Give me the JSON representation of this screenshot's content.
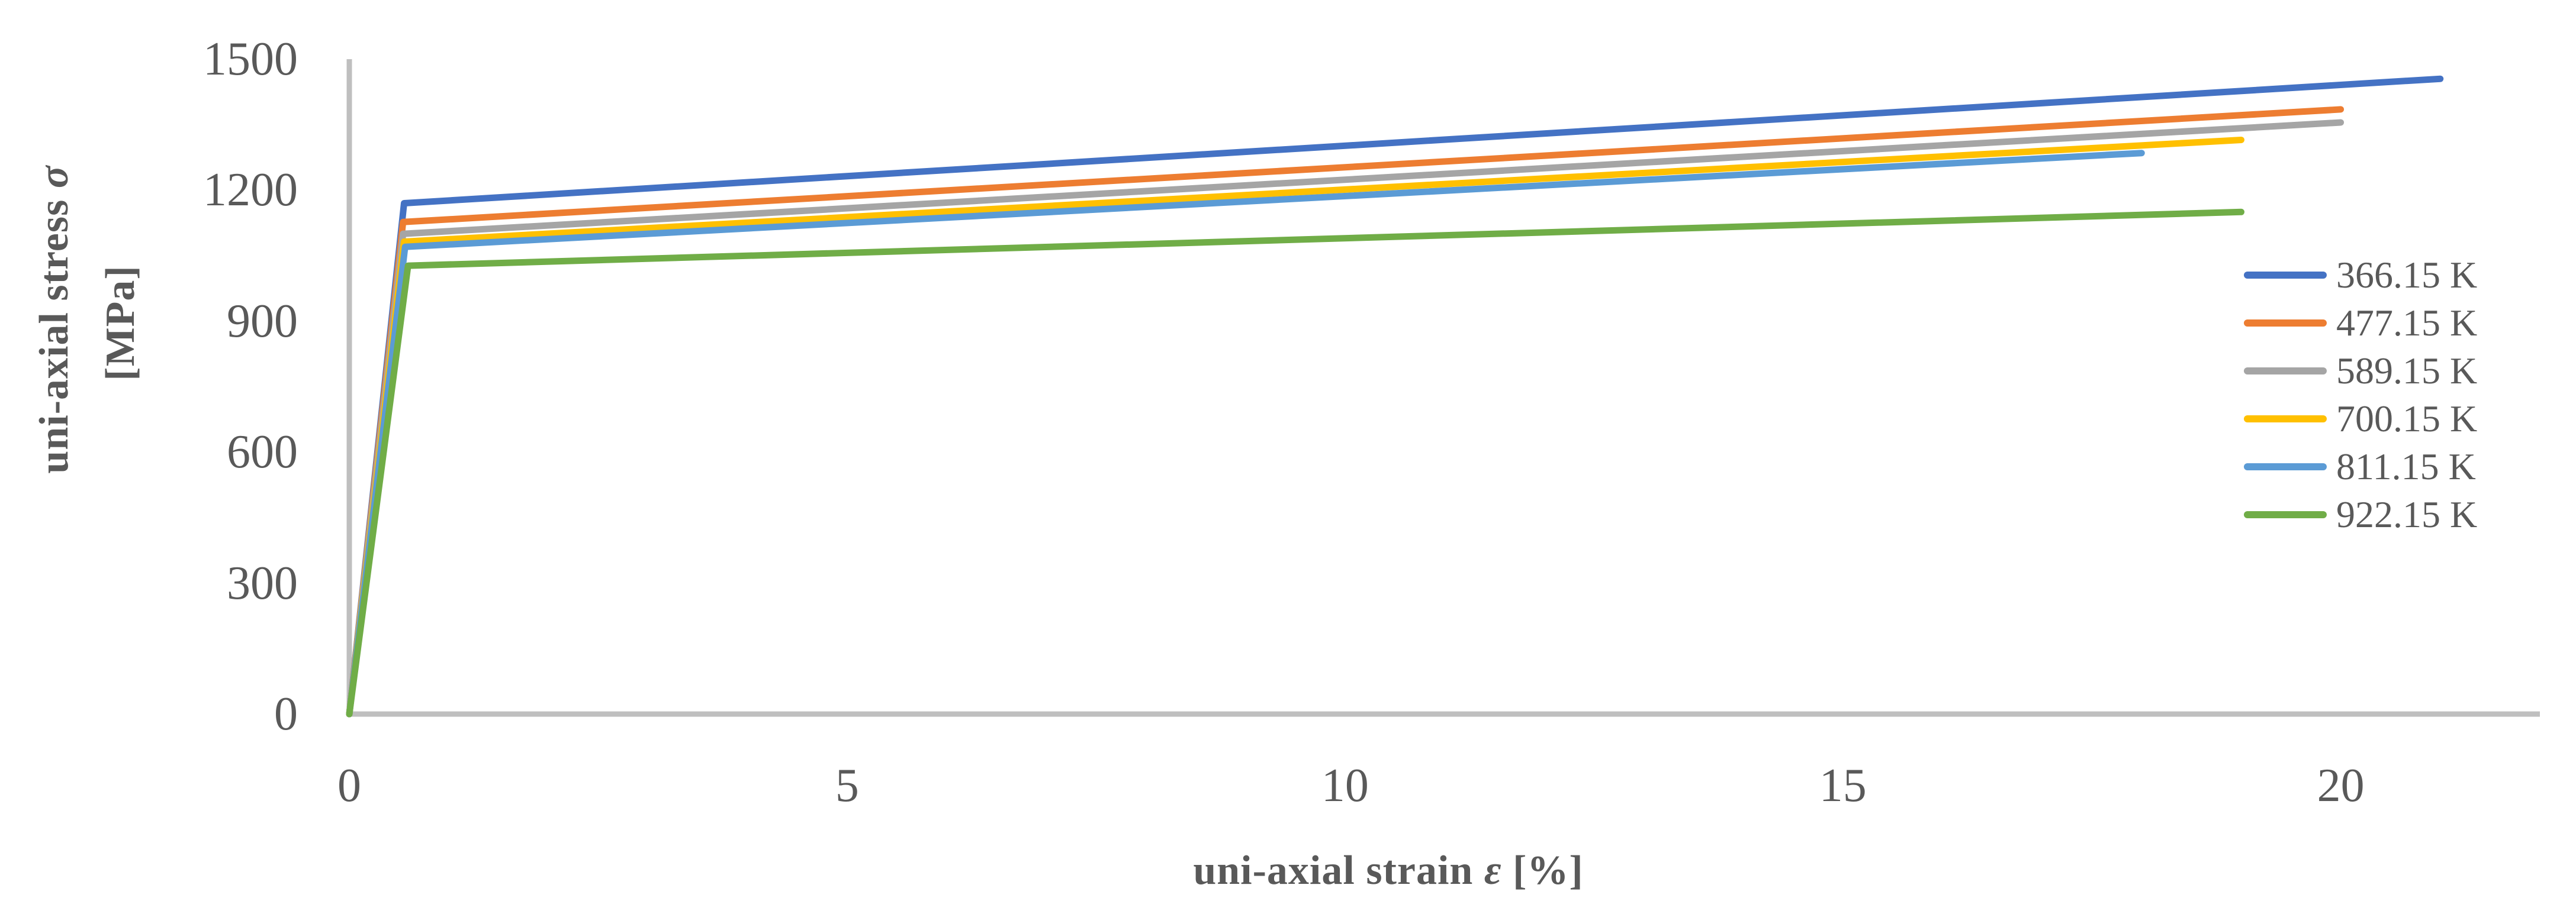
{
  "chart_data": {
    "type": "line",
    "title": "",
    "xlabel": {
      "prefix": "uni-axial strain ",
      "symbol": "ε",
      "suffix": " [%]"
    },
    "ylabel": {
      "line1_prefix": "uni-axial stress ",
      "line1_symbol": "σ",
      "line2": "[MPa]"
    },
    "xlim": [
      0,
      22
    ],
    "ylim": [
      0,
      1500
    ],
    "x_ticks": [
      0,
      5,
      10,
      15,
      20
    ],
    "y_ticks": [
      0,
      300,
      600,
      900,
      1200,
      1500
    ],
    "grid": false,
    "legend_position": "right",
    "x_unit": "%",
    "y_unit": "MPa",
    "series": [
      {
        "name": "366.15 K",
        "color": "#4472C4",
        "points": [
          [
            0,
            0
          ],
          [
            0.55,
            1170
          ],
          [
            21,
            1455
          ]
        ]
      },
      {
        "name": "477.15 K",
        "color": "#ED7D31",
        "points": [
          [
            0,
            0
          ],
          [
            0.54,
            1127
          ],
          [
            20,
            1385
          ]
        ]
      },
      {
        "name": "589.15 K",
        "color": "#A5A5A5",
        "points": [
          [
            0,
            0
          ],
          [
            0.54,
            1100
          ],
          [
            20,
            1355
          ]
        ]
      },
      {
        "name": "700.15 K",
        "color": "#FFC000",
        "points": [
          [
            0,
            0
          ],
          [
            0.55,
            1082
          ],
          [
            19,
            1315
          ]
        ]
      },
      {
        "name": "811.15 K",
        "color": "#5B9BD5",
        "points": [
          [
            0,
            0
          ],
          [
            0.56,
            1070
          ],
          [
            18,
            1285
          ]
        ]
      },
      {
        "name": "922.15 K",
        "color": "#70AD47",
        "points": [
          [
            0,
            0
          ],
          [
            0.59,
            1027
          ],
          [
            19,
            1150
          ]
        ]
      }
    ]
  },
  "colors": {
    "axis_line": "#BFBFBF",
    "tick_text": "#595959",
    "title_text": "#595959",
    "background": "#FFFFFF"
  }
}
